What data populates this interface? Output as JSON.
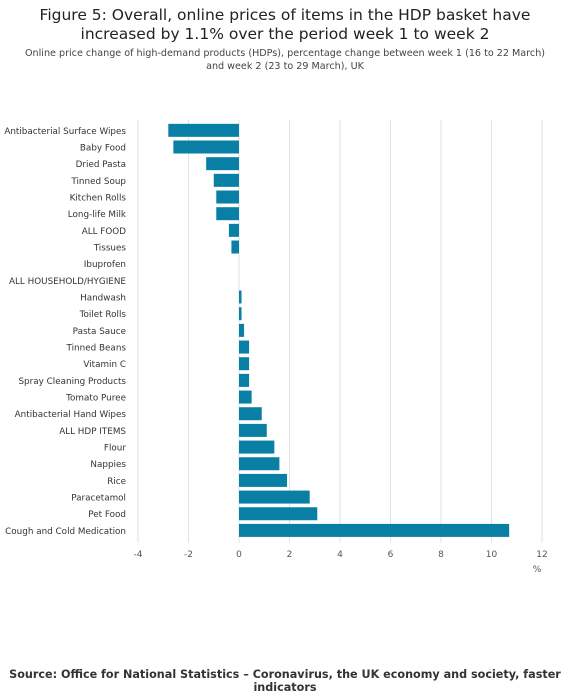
{
  "title": "Figure 5: Overall, online prices of items in the HDP basket have increased by 1.1% over the period week 1 to week 2",
  "subtitle": "Online price change of high-demand products (HDPs), percentage change between week 1 (16 to 22 March) and week 2 (23 to 29 March), UK",
  "source": "Source: Office for National Statistics – Coronavirus, the UK economy and society, faster indicators",
  "chart_data": {
    "type": "bar",
    "orientation": "horizontal",
    "xlabel": "%",
    "xlim": [
      -4,
      12
    ],
    "xticks": [
      -4,
      -2,
      0,
      2,
      4,
      6,
      8,
      10,
      12
    ],
    "grid": true,
    "bar_color": "#0a7fa6",
    "categories": [
      "Antibacterial Surface Wipes",
      "Baby Food",
      "Dried Pasta",
      "Tinned Soup",
      "Kitchen Rolls",
      "Long-life Milk",
      "ALL FOOD",
      "Tissues",
      "Ibuprofen",
      "ALL HOUSEHOLD/HYGIENE",
      "Handwash",
      "Toilet Rolls",
      "Pasta Sauce",
      "Tinned Beans",
      "Vitamin C",
      "Spray Cleaning Products",
      "Tomato Puree",
      "Antibacterial Hand Wipes",
      "ALL HDP ITEMS",
      "Flour",
      "Nappies",
      "Rice",
      "Paracetamol",
      "Pet Food",
      "Cough and Cold Medication"
    ],
    "values": [
      -2.8,
      -2.6,
      -1.3,
      -1.0,
      -0.9,
      -0.9,
      -0.4,
      -0.3,
      0,
      0,
      0.1,
      0.1,
      0.2,
      0.4,
      0.4,
      0.4,
      0.5,
      0.9,
      1.1,
      1.4,
      1.6,
      1.9,
      2.8,
      3.1,
      10.7
    ]
  }
}
